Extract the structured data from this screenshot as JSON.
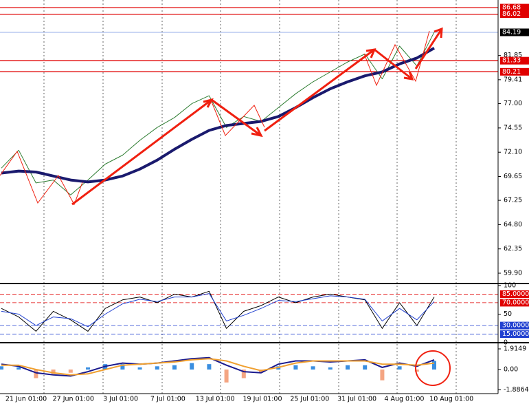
{
  "chart_data": [
    {
      "type": "line",
      "ylim": [
        58.86,
        87.45
      ],
      "yticks": [
        81.85,
        79.41,
        {
          "value": 77,
          "label": "77.00"
        },
        74.55,
        {
          "value": 72.1,
          "label": "72.10"
        },
        69.65,
        67.25,
        {
          "value": 64.8,
          "label": "64.80"
        },
        62.35,
        {
          "value": 59.9,
          "label": "59.90"
        }
      ],
      "hlines": [
        {
          "value": 86.68,
          "color": "#e00000",
          "box": "#e00000"
        },
        {
          "value": 86.02,
          "color": "#e00000",
          "box": "#e00000"
        },
        {
          "value": 84.19,
          "color": "#7090e0",
          "box": "#000000"
        },
        {
          "value": 81.33,
          "color": "#e00000",
          "box": "#e00000"
        },
        {
          "value": 80.21,
          "color": "#e00000",
          "box": "#e00000"
        }
      ],
      "series": [
        {
          "color": "#2e7d32",
          "width": 1,
          "values": [
            70.5,
            72.3,
            69.0,
            69.3,
            67.8,
            69.3,
            70.9,
            71.8,
            73.3,
            74.6,
            75.6,
            77.0,
            77.8,
            74.6,
            75.7,
            75.2,
            76.6,
            78.0,
            79.2,
            80.2,
            81.2,
            82.0,
            79.5,
            82.8,
            80.8,
            84.2
          ]
        },
        {
          "color": "#1a1a6e",
          "width": 4,
          "values": [
            70.0,
            70.2,
            70.1,
            69.7,
            69.3,
            69.1,
            69.3,
            69.7,
            70.4,
            71.3,
            72.4,
            73.4,
            74.3,
            74.8,
            75.0,
            75.2,
            75.7,
            76.6,
            77.6,
            78.5,
            79.2,
            79.8,
            80.2,
            81.0,
            81.6,
            82.6
          ]
        }
      ]
    },
    {
      "type": "line",
      "ylim": [
        0,
        100
      ],
      "yticks": [
        100,
        50,
        0
      ],
      "hlines": [
        {
          "value": 85,
          "label": "85.0000",
          "color": "#e00000",
          "box": "#e00000"
        },
        {
          "value": 70,
          "label": "70.0000",
          "color": "#e00000",
          "box": "#e00000"
        },
        {
          "value": 30,
          "label": "30.0000",
          "color": "#2040d0",
          "box": "#2040d0"
        },
        {
          "value": 15,
          "label": "15.0000",
          "color": "#2040d0",
          "box": "#2040d0"
        }
      ],
      "series": [
        {
          "color": "#000000",
          "width": 1,
          "values": [
            60,
            45,
            20,
            55,
            40,
            20,
            60,
            75,
            80,
            70,
            85,
            80,
            90,
            25,
            55,
            65,
            80,
            70,
            80,
            85,
            80,
            75,
            25,
            70,
            30,
            80
          ]
        },
        {
          "color": "#2040d0",
          "width": 1,
          "values": [
            55,
            50,
            30,
            45,
            42,
            28,
            50,
            68,
            76,
            72,
            80,
            80,
            86,
            38,
            48,
            60,
            74,
            72,
            77,
            82,
            80,
            76,
            38,
            60,
            40,
            72
          ]
        }
      ]
    },
    {
      "type": "bar",
      "ylim": [
        -2.234,
        2.425
      ],
      "yticks": [
        1.9149,
        {
          "value": 0,
          "label": "0.00"
        },
        -1.8864
      ],
      "up_color": "#3a8ee0",
      "down_color": "#f4a582",
      "values": [
        0.3,
        0.2,
        -0.8,
        -0.4,
        -0.3,
        0.2,
        0.5,
        0.5,
        0.2,
        0.3,
        0.4,
        0.6,
        0.5,
        -1.2,
        -0.8,
        -0.3,
        0.3,
        0.4,
        0.3,
        0.2,
        0.4,
        0.4,
        -1.0,
        0.3,
        -0.2,
        0.8
      ],
      "series": [
        {
          "color": "#1a1a8e",
          "width": 2,
          "values": [
            0.5,
            0.3,
            -0.3,
            -0.5,
            -0.6,
            -0.2,
            0.3,
            0.6,
            0.5,
            0.6,
            0.8,
            1.0,
            1.1,
            0.4,
            -0.2,
            -0.3,
            0.5,
            0.8,
            0.8,
            0.7,
            0.8,
            0.9,
            0.2,
            0.6,
            0.3,
            0.9
          ]
        },
        {
          "color": "#f0a030",
          "width": 2,
          "values": [
            0.4,
            0.4,
            0.0,
            -0.3,
            -0.5,
            -0.4,
            0.0,
            0.4,
            0.5,
            0.6,
            0.7,
            0.9,
            1.0,
            0.8,
            0.3,
            -0.1,
            0.2,
            0.6,
            0.8,
            0.8,
            0.8,
            0.8,
            0.5,
            0.5,
            0.4,
            0.6
          ]
        }
      ],
      "x_labels": [
        "21 Jun 01:00",
        "27 Jun 01:00",
        "3 Jul 01:00",
        "7 Jul 01:00",
        "13 Jul 01:00",
        "19 Jul 01:00",
        "25 Jul 01:00",
        "31 Jul 01:00",
        "4 Aug 01:00",
        "10 Aug 01:00"
      ]
    }
  ]
}
